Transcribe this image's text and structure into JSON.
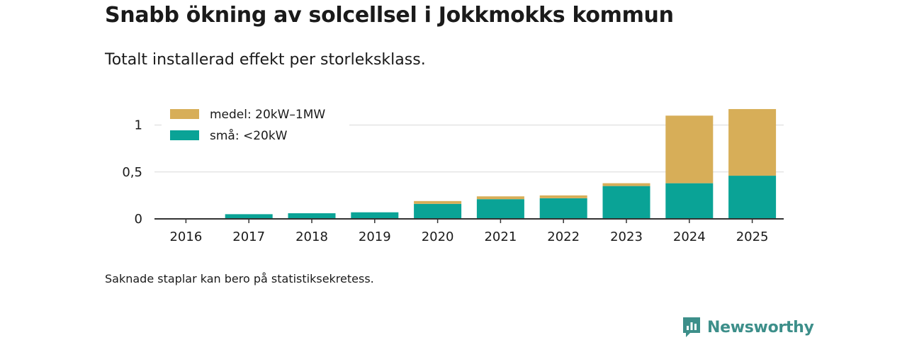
{
  "header": {
    "title": "Snabb ökning av solcellsel i Jokkmokks kommun",
    "subtitle": "Totalt installerad effekt per storleksklass."
  },
  "footer": {
    "note": "Saknade staplar kan bero på statistiksekretess.",
    "brand": "Newsworthy"
  },
  "colors": {
    "small": "#0aa396",
    "medium": "#d7ae58",
    "grid": "#d9d9d9",
    "axis": "#333333",
    "brand": "#3d8f8a"
  },
  "chart_data": {
    "type": "bar",
    "stacked": true,
    "title": "Snabb ökning av solcellsel i Jokkmokks kommun",
    "subtitle": "Totalt installerad effekt per storleksklass.",
    "categories": [
      "2016",
      "2017",
      "2018",
      "2019",
      "2020",
      "2021",
      "2022",
      "2023",
      "2024",
      "2025"
    ],
    "series": [
      {
        "name": "små: <20kW",
        "color": "#0aa396",
        "values": [
          0,
          0.05,
          0.06,
          0.07,
          0.16,
          0.21,
          0.22,
          0.35,
          0.38,
          0.46
        ]
      },
      {
        "name": "medel: 20kW–1MW",
        "color": "#d7ae58",
        "values": [
          0,
          0,
          0,
          0,
          0.03,
          0.03,
          0.03,
          0.03,
          0.72,
          0.71
        ]
      }
    ],
    "yticks": [
      0,
      0.5,
      1
    ],
    "ytick_labels": [
      "0",
      "0,5",
      "1"
    ],
    "ylim": [
      0,
      1.2
    ],
    "xlabel": "",
    "ylabel": "",
    "grid": true,
    "legend_position": "top-left",
    "legend_order": [
      "medel: 20kW–1MW",
      "små: <20kW"
    ]
  }
}
